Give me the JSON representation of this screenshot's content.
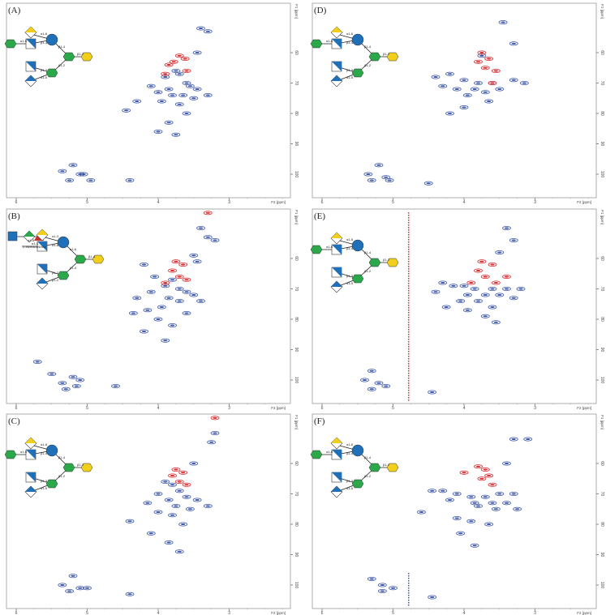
{
  "chart_data": {
    "type": "scatter",
    "description_kind": "2D HSQC NMR spectra",
    "x_axis": {
      "label": "F2 [ppm]",
      "ticks": [
        6,
        5,
        4,
        3
      ],
      "range": [
        6.1,
        2.14
      ]
    },
    "y_axis": {
      "label": "F1 [ppm]",
      "ticks": [
        60,
        70,
        80,
        90,
        100
      ],
      "range": [
        44,
        105
      ]
    },
    "colors": {
      "positive": "#3a55a8",
      "negative": "#d8262a",
      "frame": "#9a9a9a"
    },
    "panels": [
      {
        "label": "(A)",
        "glycan": {
          "links": [
            "α1-6",
            "α1-6",
            "β1-4",
            "β1-4",
            "β1-2",
            "β1-2",
            "β1-3",
            "α1-5"
          ]
        },
        "positive": [
          [
            3.4,
            52
          ],
          [
            3.3,
            53
          ],
          [
            3.45,
            60
          ],
          [
            3.75,
            66
          ],
          [
            3.7,
            67
          ],
          [
            3.9,
            68
          ],
          [
            3.6,
            70
          ],
          [
            3.55,
            71
          ],
          [
            3.85,
            72
          ],
          [
            3.45,
            72
          ],
          [
            4.0,
            73
          ],
          [
            3.8,
            74
          ],
          [
            3.65,
            74
          ],
          [
            3.5,
            75
          ],
          [
            3.3,
            74
          ],
          [
            3.95,
            76
          ],
          [
            3.7,
            77
          ],
          [
            4.1,
            71
          ],
          [
            4.3,
            76
          ],
          [
            4.45,
            79
          ],
          [
            3.6,
            80
          ],
          [
            3.85,
            83
          ],
          [
            4.0,
            86
          ],
          [
            3.75,
            87
          ],
          [
            5.2,
            97
          ],
          [
            5.35,
            99
          ],
          [
            5.1,
            100
          ],
          [
            5.25,
            102
          ],
          [
            4.95,
            102
          ],
          [
            4.4,
            102
          ],
          [
            5.05,
            100
          ]
        ],
        "negative": [
          [
            3.7,
            61
          ],
          [
            3.62,
            62
          ],
          [
            3.78,
            63
          ],
          [
            3.85,
            64
          ],
          [
            3.6,
            66
          ],
          [
            3.9,
            67
          ]
        ],
        "artifacts": []
      },
      {
        "label": "(B)",
        "glycan": {
          "links": [
            "α1-4",
            "α1-3",
            "α1-6",
            "α1-6",
            "β1-4",
            "β1-4",
            "β1-2",
            "β1-2",
            "α1-5"
          ],
          "mods": [
            "2,3NHAc",
            "4NHAc"
          ]
        },
        "positive": [
          [
            3.4,
            50
          ],
          [
            3.3,
            53
          ],
          [
            3.2,
            54
          ],
          [
            3.5,
            59
          ],
          [
            3.45,
            61
          ],
          [
            4.2,
            62
          ],
          [
            4.05,
            66
          ],
          [
            3.8,
            67
          ],
          [
            3.9,
            69
          ],
          [
            3.7,
            70
          ],
          [
            3.6,
            71
          ],
          [
            4.1,
            71
          ],
          [
            3.5,
            72
          ],
          [
            3.85,
            73
          ],
          [
            4.3,
            73
          ],
          [
            3.7,
            74
          ],
          [
            3.4,
            74
          ],
          [
            3.95,
            76
          ],
          [
            4.15,
            77
          ],
          [
            3.6,
            78
          ],
          [
            4.35,
            78
          ],
          [
            4.0,
            80
          ],
          [
            3.8,
            82
          ],
          [
            4.2,
            84
          ],
          [
            3.9,
            87
          ],
          [
            5.5,
            98
          ],
          [
            5.2,
            99
          ],
          [
            5.1,
            100
          ],
          [
            5.35,
            101
          ],
          [
            5.15,
            102
          ],
          [
            5.3,
            103
          ],
          [
            4.6,
            102
          ],
          [
            5.7,
            94
          ]
        ],
        "negative": [
          [
            3.75,
            61
          ],
          [
            3.65,
            62
          ],
          [
            3.8,
            64
          ],
          [
            3.7,
            66
          ],
          [
            3.6,
            67
          ],
          [
            3.9,
            68
          ],
          [
            3.3,
            45
          ]
        ],
        "artifacts": []
      },
      {
        "label": "(C)",
        "glycan": {
          "links": [
            "α1-6",
            "α1-6",
            "β1-4",
            "β1-4",
            "β1-2",
            "β1-2",
            "β1-3",
            "α1-5"
          ]
        },
        "positive": [
          [
            3.2,
            50
          ],
          [
            3.25,
            53
          ],
          [
            3.5,
            60
          ],
          [
            3.9,
            66
          ],
          [
            3.8,
            67
          ],
          [
            3.7,
            69
          ],
          [
            4.0,
            70
          ],
          [
            3.6,
            71
          ],
          [
            3.85,
            72
          ],
          [
            3.45,
            72
          ],
          [
            3.75,
            74
          ],
          [
            3.55,
            75
          ],
          [
            3.3,
            74
          ],
          [
            4.0,
            76
          ],
          [
            3.8,
            77
          ],
          [
            4.15,
            73
          ],
          [
            4.4,
            79
          ],
          [
            3.65,
            80
          ],
          [
            4.1,
            83
          ],
          [
            3.85,
            86
          ],
          [
            3.7,
            89
          ],
          [
            5.2,
            97
          ],
          [
            5.35,
            100
          ],
          [
            5.1,
            101
          ],
          [
            5.25,
            102
          ],
          [
            5.0,
            101
          ],
          [
            4.4,
            103
          ]
        ],
        "negative": [
          [
            3.75,
            62
          ],
          [
            3.65,
            63
          ],
          [
            3.8,
            64
          ],
          [
            3.7,
            66
          ],
          [
            3.6,
            67
          ],
          [
            3.2,
            45
          ]
        ],
        "artifacts": []
      },
      {
        "label": "(D)",
        "glycan": {
          "links": [
            "α1-6",
            "α1-6",
            "β1-4",
            "β1-4",
            "β1-2",
            "β1-2",
            "β1-3",
            "α1-5"
          ]
        },
        "positive": [
          [
            3.45,
            50
          ],
          [
            3.3,
            57
          ],
          [
            3.75,
            61
          ],
          [
            4.4,
            68
          ],
          [
            4.2,
            67
          ],
          [
            4.0,
            69
          ],
          [
            3.8,
            70
          ],
          [
            3.6,
            70
          ],
          [
            3.3,
            69
          ],
          [
            3.15,
            70
          ],
          [
            4.1,
            72
          ],
          [
            3.85,
            72
          ],
          [
            3.5,
            72
          ],
          [
            3.7,
            73
          ],
          [
            4.3,
            71
          ],
          [
            3.95,
            74
          ],
          [
            4.0,
            78
          ],
          [
            4.2,
            80
          ],
          [
            3.65,
            76
          ],
          [
            5.2,
            97
          ],
          [
            5.35,
            100
          ],
          [
            5.1,
            101
          ],
          [
            5.3,
            102
          ],
          [
            5.05,
            102
          ],
          [
            4.5,
            103
          ]
        ],
        "negative": [
          [
            3.75,
            60
          ],
          [
            3.65,
            62
          ],
          [
            3.8,
            63
          ],
          [
            3.7,
            65
          ],
          [
            3.55,
            66
          ],
          [
            3.6,
            70
          ]
        ],
        "artifacts": []
      },
      {
        "label": "(E)",
        "glycan": {
          "links": [
            "α1-6",
            "α1-6",
            "β1-4",
            "β1-4",
            "β1-2",
            "β1-2",
            "β1-3",
            "α1-5"
          ]
        },
        "positive": [
          [
            3.4,
            50
          ],
          [
            3.3,
            54
          ],
          [
            3.5,
            58
          ],
          [
            4.3,
            68
          ],
          [
            4.15,
            69
          ],
          [
            4.0,
            69
          ],
          [
            3.85,
            70
          ],
          [
            3.6,
            70
          ],
          [
            3.4,
            70
          ],
          [
            3.2,
            70
          ],
          [
            4.4,
            71
          ],
          [
            3.95,
            72
          ],
          [
            3.7,
            72
          ],
          [
            3.5,
            72
          ],
          [
            3.3,
            73
          ],
          [
            4.05,
            74
          ],
          [
            3.8,
            74
          ],
          [
            4.25,
            76
          ],
          [
            3.95,
            77
          ],
          [
            3.6,
            76
          ],
          [
            3.7,
            79
          ],
          [
            3.55,
            81
          ],
          [
            5.3,
            97
          ],
          [
            5.4,
            100
          ],
          [
            5.2,
            101
          ],
          [
            5.1,
            102
          ],
          [
            5.3,
            103
          ],
          [
            4.45,
            104
          ]
        ],
        "negative": [
          [
            3.75,
            61
          ],
          [
            3.6,
            62
          ],
          [
            3.8,
            64
          ],
          [
            3.7,
            66
          ],
          [
            3.55,
            68
          ],
          [
            3.9,
            68
          ],
          [
            3.4,
            66
          ]
        ],
        "artifacts": [
          {
            "f2": 4.78,
            "color": "negative"
          }
        ]
      },
      {
        "label": "(F)",
        "glycan": {
          "links": [
            "α1-6",
            "α1-6",
            "β1-4",
            "β1-4",
            "β1-2",
            "β1-2",
            "β1-3",
            "α1-5"
          ]
        },
        "positive": [
          [
            3.3,
            52
          ],
          [
            3.1,
            52
          ],
          [
            3.4,
            60
          ],
          [
            4.45,
            69
          ],
          [
            4.3,
            69
          ],
          [
            4.1,
            70
          ],
          [
            3.9,
            71
          ],
          [
            3.7,
            71
          ],
          [
            3.5,
            70
          ],
          [
            3.3,
            70
          ],
          [
            4.2,
            72
          ],
          [
            3.85,
            73
          ],
          [
            3.6,
            73
          ],
          [
            3.4,
            73
          ],
          [
            3.8,
            74
          ],
          [
            3.55,
            75
          ],
          [
            3.25,
            75
          ],
          [
            4.6,
            76
          ],
          [
            4.1,
            78
          ],
          [
            3.9,
            79
          ],
          [
            3.65,
            80
          ],
          [
            4.05,
            83
          ],
          [
            3.85,
            87
          ],
          [
            5.3,
            98
          ],
          [
            5.15,
            100
          ],
          [
            5.0,
            101
          ],
          [
            5.15,
            102
          ],
          [
            4.45,
            104
          ]
        ],
        "negative": [
          [
            3.8,
            61
          ],
          [
            3.7,
            62
          ],
          [
            3.65,
            64
          ],
          [
            3.75,
            65
          ],
          [
            3.6,
            67
          ],
          [
            4.0,
            63
          ]
        ],
        "artifacts": [
          {
            "f2": 4.78,
            "color": "positive",
            "bottom_only": true
          }
        ]
      }
    ]
  }
}
